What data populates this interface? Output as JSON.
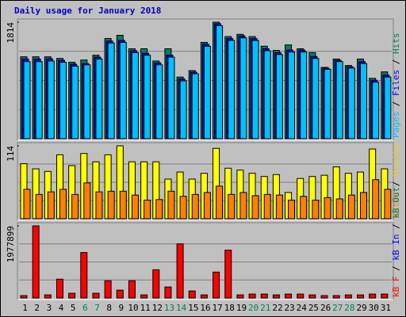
{
  "chart_data": {
    "type": "bar",
    "title": "Daily usage for January 2018",
    "categories": [
      "1",
      "2",
      "3",
      "4",
      "5",
      "6",
      "7",
      "8",
      "9",
      "10",
      "11",
      "12",
      "13",
      "14",
      "15",
      "16",
      "17",
      "18",
      "19",
      "20",
      "21",
      "22",
      "23",
      "24",
      "25",
      "26",
      "27",
      "28",
      "29",
      "30",
      "31"
    ],
    "category_colors": [
      "#000000",
      "#000000",
      "#000000",
      "#000000",
      "#000000",
      "#00805c",
      "#00805c",
      "#000000",
      "#000000",
      "#000000",
      "#000000",
      "#000000",
      "#00805c",
      "#00805c",
      "#000000",
      "#000000",
      "#000000",
      "#000000",
      "#000000",
      "#00805c",
      "#00805c",
      "#000000",
      "#000000",
      "#000000",
      "#000000",
      "#000000",
      "#00805c",
      "#00805c",
      "#000000",
      "#000000",
      "#000000"
    ],
    "panels": [
      {
        "ylim": [
          0,
          1814
        ],
        "yticks": [
          1814
        ],
        "legend": [
          {
            "text": "Pages",
            "color": "#00c0ff"
          },
          {
            "text": " / ",
            "color": "#000000"
          },
          {
            "text": "Files",
            "color": "#0000ff"
          },
          {
            "text": " / ",
            "color": "#000000"
          },
          {
            "text": "Hits",
            "color": "#00805c"
          }
        ],
        "series": [
          {
            "name": "Hits",
            "color": "#00805c",
            "values": [
              1275,
              1275,
              1275,
              1250,
              1190,
              1225,
              1300,
              1560,
              1610,
              1400,
              1400,
              1210,
              1400,
              960,
              1060,
              1500,
              1814,
              1590,
              1625,
              1590,
              1440,
              1375,
              1460,
              1400,
              1340,
              1110,
              1240,
              1140,
              1240,
              940,
              1040
            ]
          },
          {
            "name": "Files",
            "color": "#0000ff",
            "values": [
              1240,
              1240,
              1245,
              1220,
              1160,
              1170,
              1270,
              1520,
              1530,
              1370,
              1330,
              1180,
              1300,
              930,
              1035,
              1470,
              1790,
              1560,
              1600,
              1560,
              1400,
              1340,
              1380,
              1380,
              1280,
              1100,
              1220,
              1120,
              1200,
              910,
              990
            ]
          },
          {
            "name": "Pages",
            "color": "#00c0ff",
            "values": [
              1200,
              1200,
              1210,
              1190,
              1130,
              1150,
              1240,
              1490,
              1500,
              1340,
              1300,
              1150,
              1270,
              900,
              1010,
              1440,
              1760,
              1530,
              1570,
              1530,
              1370,
              1310,
              1350,
              1350,
              1250,
              1080,
              1200,
              1100,
              1170,
              880,
              960
            ]
          }
        ]
      },
      {
        "ylim": [
          0,
          114
        ],
        "yticks": [
          114
        ],
        "legend": [
          {
            "text": "Sites",
            "color": "#ff8000"
          },
          {
            "text": " / ",
            "color": "#000000"
          },
          {
            "text": "Visits",
            "color": "#e8d000"
          }
        ],
        "series": [
          {
            "name": "Visits",
            "color": "#ffff00",
            "values": [
              86,
              78,
              74,
              100,
              83,
              102,
              89,
              100,
              114,
              89,
              89,
              89,
              62,
              73,
              62,
              71,
              110,
              79,
              76,
              71,
              66,
              69,
              41,
              63,
              66,
              68,
              81,
              71,
              73,
              109,
              78
            ]
          },
          {
            "name": "Sites",
            "color": "#ff8000",
            "values": [
              46,
              38,
              42,
              46,
              38,
              56,
              42,
              43,
              43,
              37,
              29,
              30,
              43,
              35,
              38,
              41,
              51,
              38,
              41,
              36,
              38,
              37,
              29,
              35,
              29,
              33,
              31,
              37,
              41,
              61,
              46
            ]
          }
        ]
      },
      {
        "ylim": [
          0,
          1977899
        ],
        "yticks": [
          1977899
        ],
        "legend": [
          {
            "text": "kB F",
            "color": "#ff0000"
          },
          {
            "text": " / ",
            "color": "#000000"
          },
          {
            "text": "kB In",
            "color": "#0000ff"
          },
          {
            "text": " / ",
            "color": "#000000"
          },
          {
            "text": "kB Out",
            "color": "#00805c"
          }
        ],
        "series": [
          {
            "name": "kB F",
            "color": "#ff0000",
            "values": [
              65000,
              1977899,
              85000,
              516000,
              129000,
              1247000,
              129000,
              473000,
              215000,
              473000,
              85000,
              774000,
              301000,
              1484000,
              193000,
              85000,
              709000,
              1312000,
              85000,
              107000,
              107000,
              85000,
              107000,
              107000,
              85000,
              65000,
              65000,
              85000,
              85000,
              107000,
              107000
            ]
          }
        ]
      }
    ]
  }
}
